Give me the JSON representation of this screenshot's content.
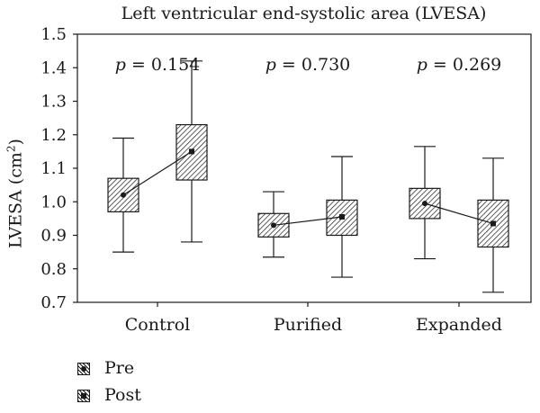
{
  "chart_data": {
    "type": "boxplot",
    "title": "Left ventricular end-systolic area (LVESA)",
    "ylabel_main": "LVESA (cm",
    "ylabel_sup": "2",
    "ylabel_end": ")",
    "ylim": [
      0.7,
      1.5
    ],
    "yticks": [
      "0.7",
      "0.8",
      "0.9",
      "1.0",
      "1.1",
      "1.2",
      "1.3",
      "1.4",
      "1.5"
    ],
    "categories": [
      "Control",
      "Purified",
      "Expanded"
    ],
    "p_values": [
      "0.154",
      "0.730",
      "0.269"
    ],
    "p_symbol": "p",
    "series": [
      {
        "name": "Pre",
        "boxes": [
          {
            "min": 0.85,
            "q1": 0.97,
            "median": 1.02,
            "q3": 1.07,
            "max": 1.19
          },
          {
            "min": 0.835,
            "q1": 0.895,
            "median": 0.93,
            "q3": 0.965,
            "max": 1.03
          },
          {
            "min": 0.83,
            "q1": 0.95,
            "median": 0.995,
            "q3": 1.04,
            "max": 1.165
          }
        ]
      },
      {
        "name": "Post",
        "boxes": [
          {
            "min": 0.88,
            "q1": 1.065,
            "median": 1.15,
            "q3": 1.23,
            "max": 1.42
          },
          {
            "min": 0.775,
            "q1": 0.9,
            "median": 0.955,
            "q3": 1.005,
            "max": 1.135
          },
          {
            "min": 0.73,
            "q1": 0.865,
            "median": 0.935,
            "q3": 1.005,
            "max": 1.13
          }
        ]
      }
    ],
    "grid": false,
    "legend_position": "bottom-left"
  },
  "colors": {
    "ink": "#1a1a1a",
    "hatch_bg": "#ffffff"
  }
}
